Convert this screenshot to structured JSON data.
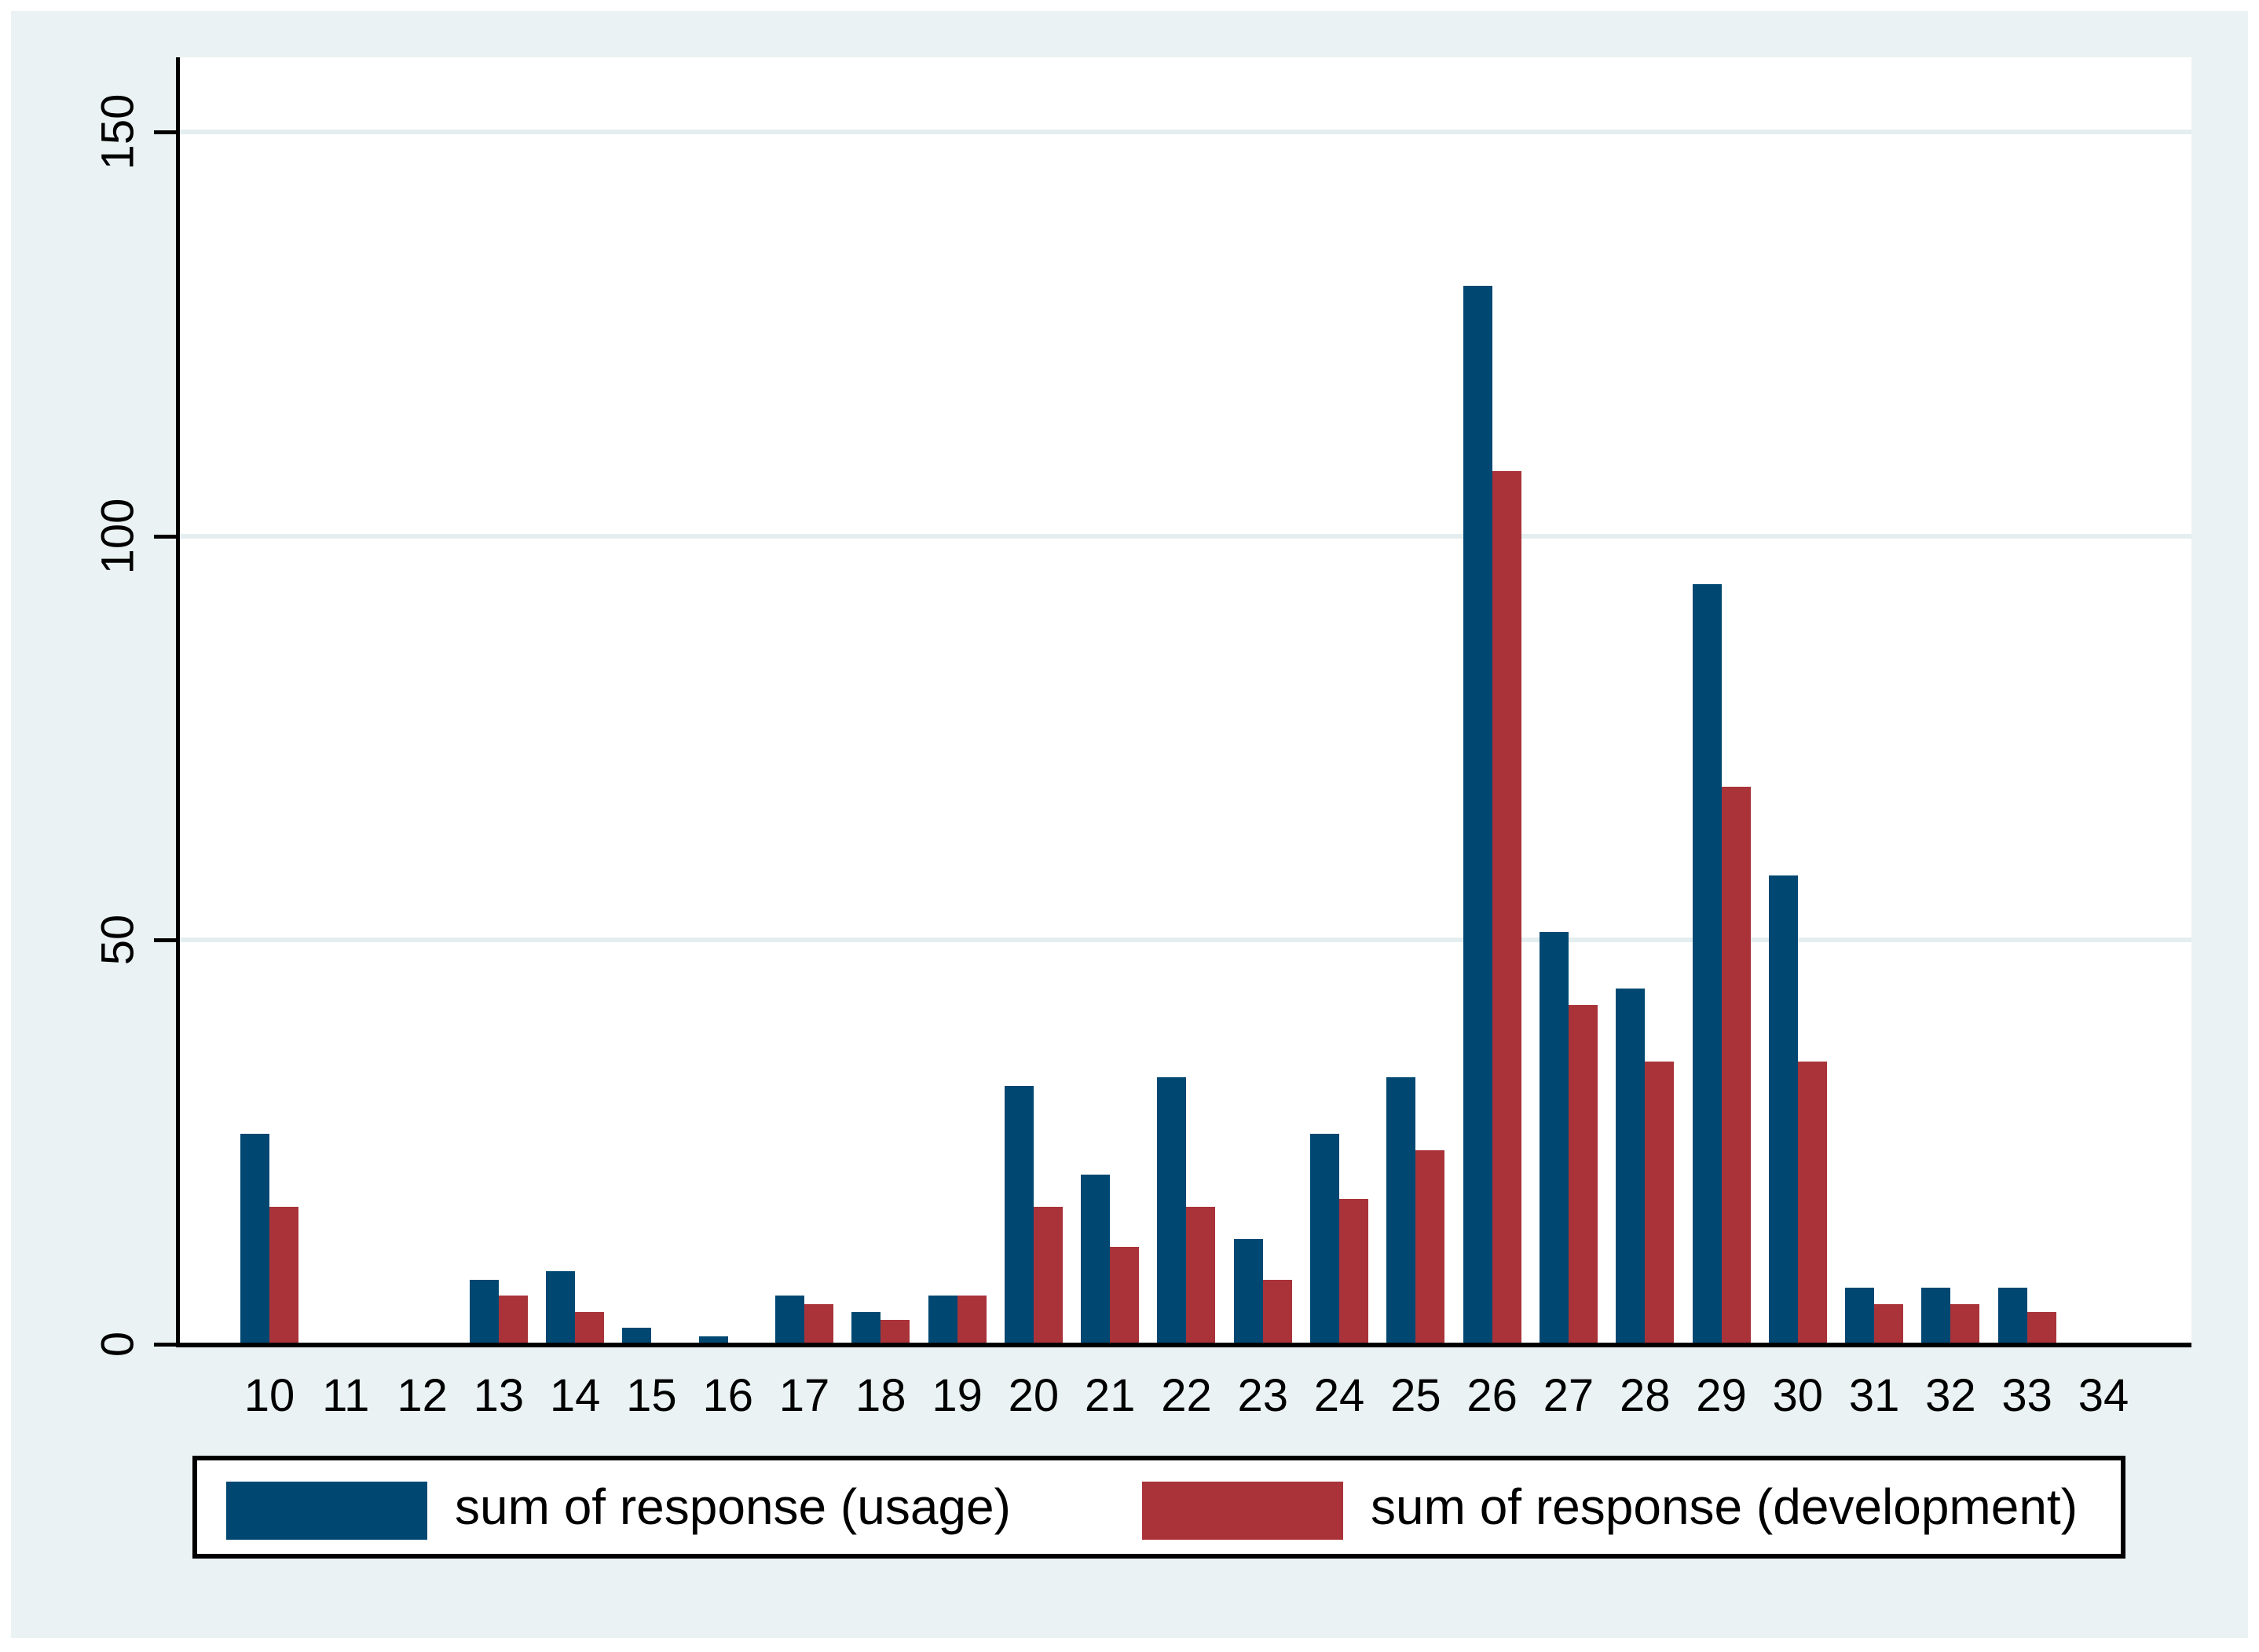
{
  "colors": {
    "background": "#EAF2F3",
    "plot_background": "#FFFFFF",
    "gridline": "#E4EEF0",
    "axis": "#000000",
    "usage": "#004872",
    "development": "#A93339"
  },
  "chart_data": {
    "type": "bar",
    "categories": [
      "10",
      "11",
      "12",
      "13",
      "14",
      "15",
      "16",
      "17",
      "18",
      "19",
      "20",
      "21",
      "22",
      "23",
      "24",
      "25",
      "26",
      "27",
      "28",
      "29",
      "30",
      "31",
      "32",
      "33",
      "34"
    ],
    "series": [
      {
        "name": "sum of response (usage)",
        "color": "#004872",
        "values": [
          26,
          0,
          0,
          8,
          9,
          2,
          1,
          6,
          4,
          6,
          32,
          21,
          33,
          13,
          26,
          33,
          131,
          51,
          44,
          94,
          58,
          7,
          7,
          7,
          0
        ]
      },
      {
        "name": "sum of response (development)",
        "color": "#A93339",
        "values": [
          17,
          0,
          0,
          6,
          4,
          0,
          0,
          5,
          3,
          6,
          17,
          12,
          17,
          8,
          18,
          24,
          108,
          42,
          35,
          69,
          35,
          5,
          5,
          4,
          0
        ]
      }
    ],
    "title": "",
    "xlabel": "",
    "ylabel": "",
    "ylim": [
      0,
      150
    ],
    "y_ticks": [
      "0",
      "50",
      "100",
      "150"
    ],
    "grid": "horizontal",
    "legend_position": "bottom"
  }
}
